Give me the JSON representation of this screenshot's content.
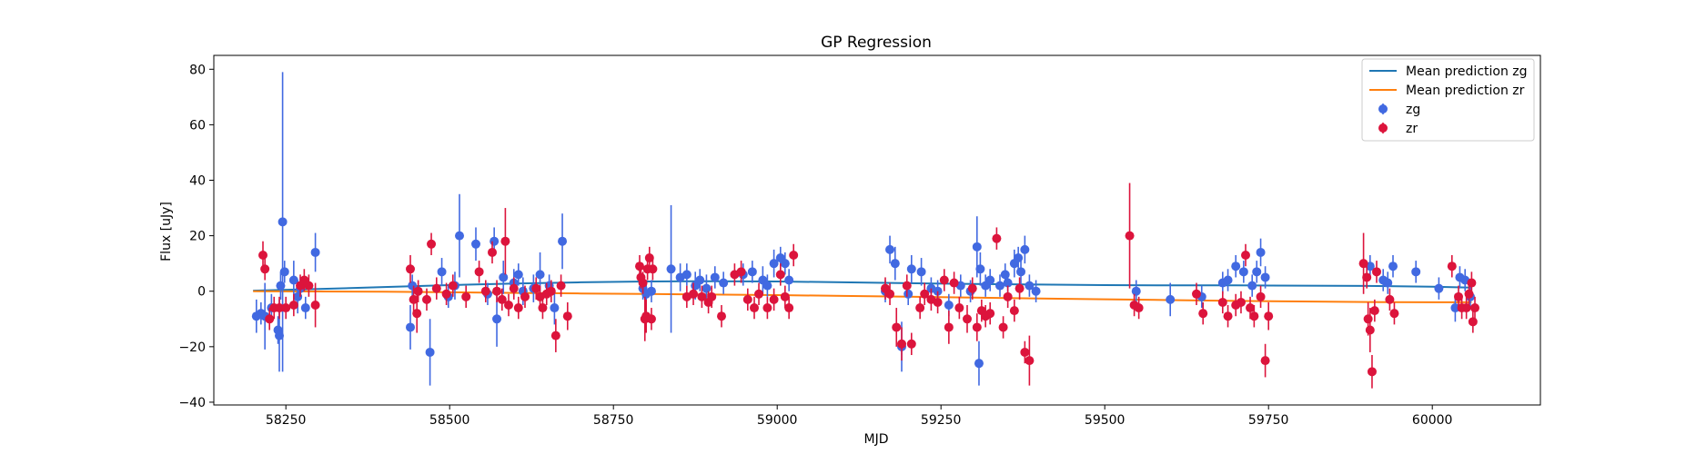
{
  "chart_data": {
    "type": "scatter",
    "title": "GP Regression",
    "xlabel": "MJD",
    "ylabel": "Flux [uJy]",
    "xlim": [
      58140,
      60165
    ],
    "ylim": [
      -41,
      85
    ],
    "xticks": [
      58250,
      58500,
      58750,
      59000,
      59250,
      59500,
      59750,
      60000
    ],
    "yticks": [
      -40,
      -20,
      0,
      20,
      40,
      60,
      80
    ],
    "legend_position": "top-right",
    "grid": false,
    "mean_lines": [
      {
        "name": "Mean prediction zg",
        "color": "#1f77b4",
        "x": [
          58200,
          58300,
          58400,
          58500,
          58600,
          58700,
          58800,
          58900,
          59000,
          59100,
          59200,
          59300,
          59400,
          59500,
          59600,
          59700,
          59800,
          59900,
          60000,
          60060
        ],
        "y": [
          0.2,
          0.8,
          1.5,
          2.2,
          2.8,
          3.2,
          3.5,
          3.6,
          3.5,
          3.2,
          2.9,
          2.6,
          2.4,
          2.2,
          2.1,
          2.1,
          2.0,
          1.9,
          1.6,
          1.3
        ]
      },
      {
        "name": "Mean prediction zr",
        "color": "#ff7f0e",
        "x": [
          58200,
          58300,
          58400,
          58500,
          58600,
          58700,
          58800,
          58900,
          59000,
          59100,
          59200,
          59300,
          59400,
          59500,
          59600,
          59700,
          59800,
          59900,
          60000,
          60060
        ],
        "y": [
          0.0,
          -0.1,
          -0.2,
          -0.4,
          -0.6,
          -0.8,
          -1.0,
          -1.2,
          -1.4,
          -1.7,
          -2.0,
          -2.3,
          -2.6,
          -2.9,
          -3.2,
          -3.5,
          -3.7,
          -3.9,
          -4.0,
          -4.0
        ]
      }
    ],
    "series": [
      {
        "name": "zg",
        "color": "#4169e1",
        "points": [
          [
            58205,
            -9,
            6
          ],
          [
            58212,
            -8,
            4
          ],
          [
            58218,
            -9,
            12
          ],
          [
            58228,
            -6,
            5
          ],
          [
            58238,
            -14,
            5
          ],
          [
            58240,
            -16,
            13
          ],
          [
            58242,
            2,
            5
          ],
          [
            58245,
            25,
            54
          ],
          [
            58248,
            7,
            4
          ],
          [
            58262,
            4,
            7
          ],
          [
            58268,
            -2,
            6
          ],
          [
            58272,
            1,
            4
          ],
          [
            58280,
            -6,
            4
          ],
          [
            58295,
            14,
            7
          ],
          [
            58440,
            -13,
            8
          ],
          [
            58443,
            2,
            4
          ],
          [
            58470,
            -22,
            12
          ],
          [
            58488,
            7,
            5
          ],
          [
            58498,
            -2,
            4
          ],
          [
            58508,
            2,
            5
          ],
          [
            58515,
            20,
            15
          ],
          [
            58540,
            17,
            6
          ],
          [
            58558,
            -1,
            4
          ],
          [
            58568,
            18,
            5
          ],
          [
            58572,
            -10,
            10
          ],
          [
            58582,
            5,
            6
          ],
          [
            58598,
            3,
            5
          ],
          [
            58605,
            6,
            4
          ],
          [
            58612,
            0,
            5
          ],
          [
            58628,
            1,
            5
          ],
          [
            58638,
            6,
            8
          ],
          [
            58652,
            2,
            4
          ],
          [
            58660,
            -6,
            6
          ],
          [
            58672,
            18,
            10
          ],
          [
            58795,
            1,
            4
          ],
          [
            58800,
            -1,
            5
          ],
          [
            58808,
            0,
            4
          ],
          [
            58838,
            8,
            23
          ],
          [
            58852,
            5,
            5
          ],
          [
            58862,
            6,
            4
          ],
          [
            58875,
            2,
            5
          ],
          [
            58882,
            4,
            4
          ],
          [
            58892,
            1,
            5
          ],
          [
            58905,
            5,
            4
          ],
          [
            58918,
            3,
            4
          ],
          [
            58948,
            6,
            4
          ],
          [
            58962,
            7,
            4
          ],
          [
            58978,
            4,
            5
          ],
          [
            58985,
            2,
            4
          ],
          [
            58995,
            10,
            5
          ],
          [
            59005,
            12,
            4
          ],
          [
            59012,
            10,
            4
          ],
          [
            59018,
            4,
            4
          ],
          [
            59165,
            0,
            4
          ],
          [
            59172,
            15,
            5
          ],
          [
            59180,
            10,
            6
          ],
          [
            59190,
            -20,
            9
          ],
          [
            59200,
            -1,
            4
          ],
          [
            59205,
            8,
            5
          ],
          [
            59220,
            7,
            5
          ],
          [
            59235,
            1,
            4
          ],
          [
            59245,
            0,
            4
          ],
          [
            59262,
            -5,
            4
          ],
          [
            59280,
            2,
            4
          ],
          [
            59295,
            0,
            4
          ],
          [
            59305,
            16,
            11
          ],
          [
            59310,
            8,
            6
          ],
          [
            59308,
            -26,
            8
          ],
          [
            59318,
            2,
            4
          ],
          [
            59325,
            4,
            4
          ],
          [
            59340,
            2,
            4
          ],
          [
            59348,
            6,
            4
          ],
          [
            59352,
            3,
            4
          ],
          [
            59362,
            10,
            5
          ],
          [
            59368,
            12,
            4
          ],
          [
            59372,
            7,
            5
          ],
          [
            59378,
            15,
            5
          ],
          [
            59385,
            2,
            4
          ],
          [
            59395,
            0,
            4
          ],
          [
            59548,
            0,
            4
          ],
          [
            59600,
            -3,
            6
          ],
          [
            59648,
            -2,
            4
          ],
          [
            59680,
            3,
            4
          ],
          [
            59688,
            4,
            4
          ],
          [
            59700,
            9,
            4
          ],
          [
            59712,
            7,
            4
          ],
          [
            59725,
            2,
            4
          ],
          [
            59732,
            7,
            4
          ],
          [
            59738,
            14,
            5
          ],
          [
            59745,
            5,
            4
          ],
          [
            59905,
            9,
            4
          ],
          [
            59925,
            4,
            4
          ],
          [
            59932,
            3,
            4
          ],
          [
            59940,
            9,
            4
          ],
          [
            59975,
            7,
            4
          ],
          [
            60010,
            1,
            4
          ],
          [
            60035,
            -6,
            5
          ],
          [
            60042,
            5,
            4
          ],
          [
            60050,
            4,
            4
          ],
          [
            60058,
            -2,
            4
          ]
        ]
      },
      {
        "name": "zr",
        "color": "#dc143c",
        "points": [
          [
            58215,
            13,
            5
          ],
          [
            58218,
            8,
            4
          ],
          [
            58225,
            -10,
            4
          ],
          [
            58232,
            -6,
            4
          ],
          [
            58240,
            -6,
            4
          ],
          [
            58250,
            -6,
            4
          ],
          [
            58262,
            -5,
            4
          ],
          [
            58272,
            2,
            4
          ],
          [
            58278,
            4,
            4
          ],
          [
            58285,
            2,
            4
          ],
          [
            58295,
            -5,
            8
          ],
          [
            58440,
            8,
            5
          ],
          [
            58445,
            -3,
            5
          ],
          [
            58450,
            -8,
            7
          ],
          [
            58452,
            0,
            4
          ],
          [
            58465,
            -3,
            4
          ],
          [
            58472,
            17,
            4
          ],
          [
            58480,
            1,
            4
          ],
          [
            58495,
            -1,
            4
          ],
          [
            58505,
            2,
            4
          ],
          [
            58525,
            -2,
            4
          ],
          [
            58545,
            7,
            4
          ],
          [
            58555,
            0,
            4
          ],
          [
            58565,
            14,
            4
          ],
          [
            58572,
            0,
            4
          ],
          [
            58580,
            -3,
            4
          ],
          [
            58585,
            18,
            12
          ],
          [
            58590,
            -5,
            4
          ],
          [
            58598,
            1,
            4
          ],
          [
            58605,
            -6,
            4
          ],
          [
            58615,
            -2,
            4
          ],
          [
            58632,
            1,
            4
          ],
          [
            58638,
            -2,
            4
          ],
          [
            58642,
            -6,
            4
          ],
          [
            58648,
            -1,
            4
          ],
          [
            58655,
            0,
            4
          ],
          [
            58662,
            -16,
            6
          ],
          [
            58670,
            2,
            4
          ],
          [
            58680,
            -9,
            5
          ],
          [
            58790,
            9,
            4
          ],
          [
            58792,
            5,
            4
          ],
          [
            58795,
            3,
            4
          ],
          [
            58798,
            -10,
            8
          ],
          [
            58800,
            -9,
            6
          ],
          [
            58802,
            8,
            4
          ],
          [
            58805,
            12,
            4
          ],
          [
            58808,
            -10,
            4
          ],
          [
            58810,
            8,
            4
          ],
          [
            58862,
            -2,
            4
          ],
          [
            58872,
            -1,
            4
          ],
          [
            58885,
            -2,
            4
          ],
          [
            58895,
            -4,
            4
          ],
          [
            58900,
            -2,
            4
          ],
          [
            58915,
            -9,
            4
          ],
          [
            58935,
            6,
            4
          ],
          [
            58945,
            7,
            4
          ],
          [
            58955,
            -3,
            4
          ],
          [
            58965,
            -6,
            4
          ],
          [
            58972,
            -1,
            4
          ],
          [
            58985,
            -6,
            4
          ],
          [
            58995,
            -3,
            4
          ],
          [
            59005,
            6,
            4
          ],
          [
            59012,
            -2,
            4
          ],
          [
            59018,
            -6,
            4
          ],
          [
            59025,
            13,
            4
          ],
          [
            59165,
            1,
            4
          ],
          [
            59172,
            -1,
            4
          ],
          [
            59182,
            -13,
            7
          ],
          [
            59190,
            -19,
            6
          ],
          [
            59198,
            2,
            4
          ],
          [
            59205,
            -19,
            4
          ],
          [
            59218,
            -6,
            4
          ],
          [
            59225,
            -1,
            4
          ],
          [
            59235,
            -3,
            4
          ],
          [
            59245,
            -4,
            4
          ],
          [
            59255,
            4,
            4
          ],
          [
            59262,
            -13,
            6
          ],
          [
            59270,
            3,
            4
          ],
          [
            59278,
            -6,
            4
          ],
          [
            59290,
            -10,
            5
          ],
          [
            59298,
            1,
            4
          ],
          [
            59305,
            -13,
            5
          ],
          [
            59312,
            -7,
            4
          ],
          [
            59318,
            -9,
            4
          ],
          [
            59325,
            -8,
            4
          ],
          [
            59335,
            19,
            4
          ],
          [
            59345,
            -13,
            4
          ],
          [
            59352,
            -2,
            4
          ],
          [
            59362,
            -7,
            4
          ],
          [
            59370,
            1,
            4
          ],
          [
            59378,
            -22,
            4
          ],
          [
            59385,
            -25,
            9
          ],
          [
            59538,
            20,
            19
          ],
          [
            59545,
            -5,
            4
          ],
          [
            59552,
            -6,
            4
          ],
          [
            59640,
            -1,
            4
          ],
          [
            59650,
            -8,
            4
          ],
          [
            59680,
            -4,
            4
          ],
          [
            59688,
            -9,
            4
          ],
          [
            59700,
            -5,
            4
          ],
          [
            59708,
            -4,
            4
          ],
          [
            59715,
            13,
            4
          ],
          [
            59722,
            -6,
            4
          ],
          [
            59728,
            -9,
            4
          ],
          [
            59738,
            -2,
            4
          ],
          [
            59745,
            -25,
            6
          ],
          [
            59750,
            -9,
            5
          ],
          [
            59895,
            10,
            11
          ],
          [
            59900,
            5,
            4
          ],
          [
            59902,
            -10,
            6
          ],
          [
            59905,
            -14,
            8
          ],
          [
            59908,
            -29,
            6
          ],
          [
            59912,
            -7,
            4
          ],
          [
            59915,
            7,
            4
          ],
          [
            59935,
            -3,
            4
          ],
          [
            59942,
            -8,
            4
          ],
          [
            60030,
            9,
            4
          ],
          [
            60040,
            -2,
            4
          ],
          [
            60045,
            -6,
            4
          ],
          [
            60052,
            -6,
            4
          ],
          [
            60056,
            -1,
            4
          ],
          [
            60060,
            3,
            4
          ],
          [
            60062,
            -11,
            4
          ],
          [
            60065,
            -6,
            4
          ]
        ]
      }
    ]
  }
}
